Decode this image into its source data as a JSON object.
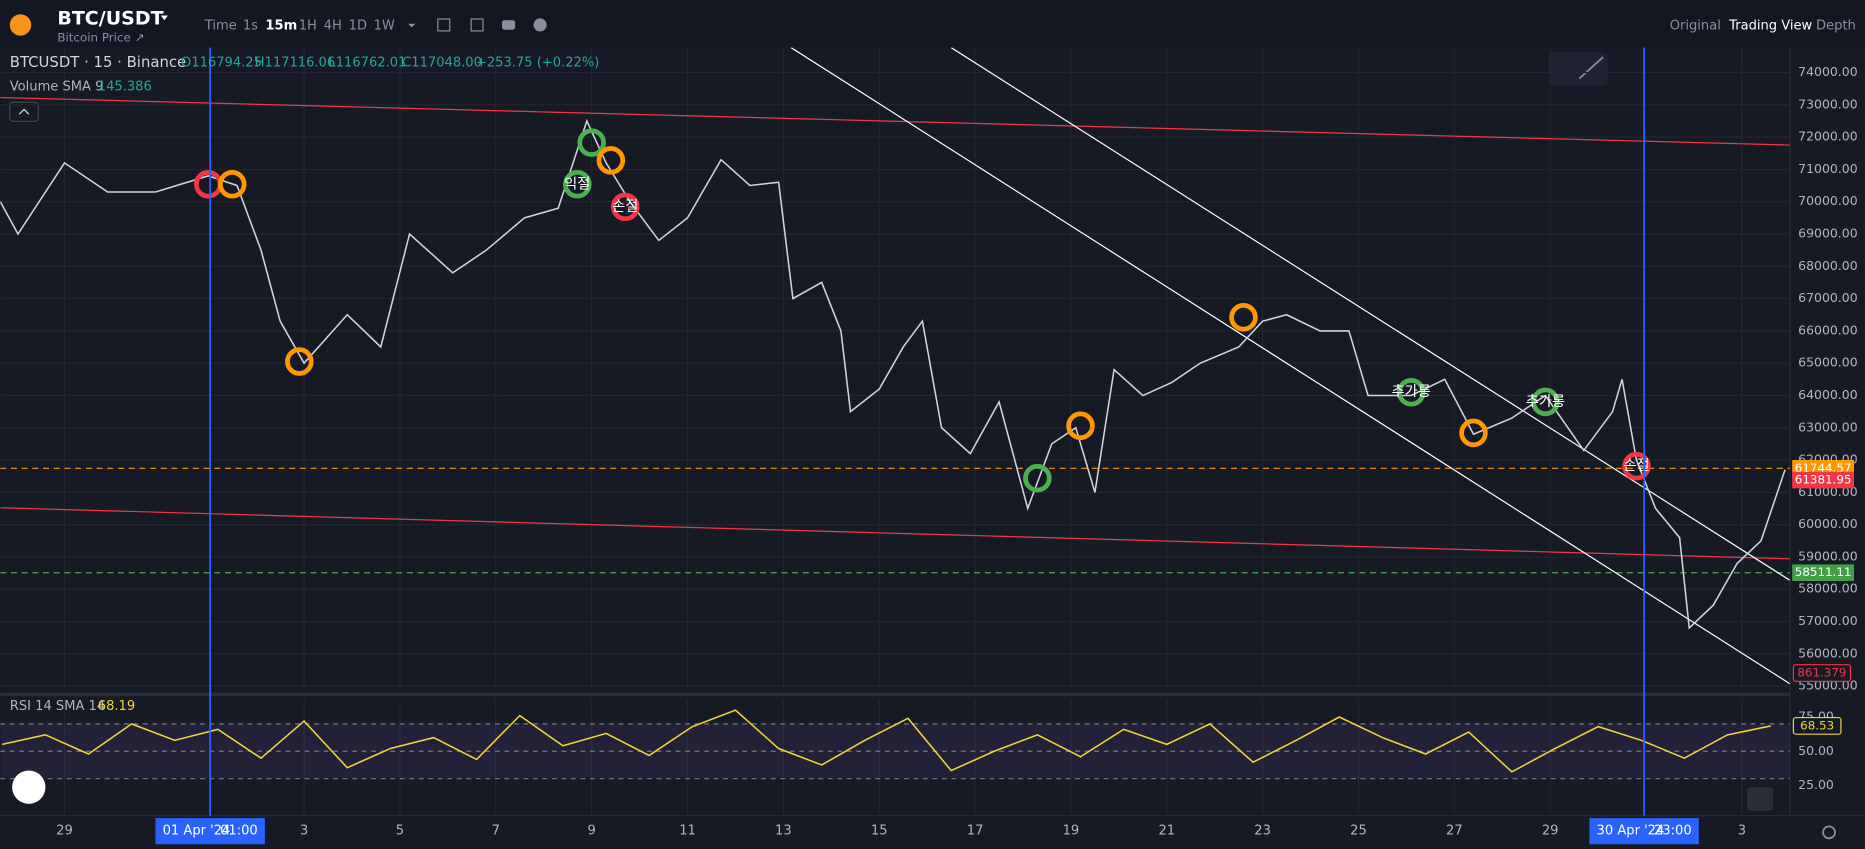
{
  "header": {
    "symbol": "BTC/USDT",
    "subtitle": "Bitcoin Price ↗",
    "timeframes": [
      "Time",
      "1s",
      "15m",
      "1H",
      "4H",
      "1D",
      "1W"
    ],
    "active_timeframe": 2,
    "views": [
      "Original",
      "Trading View",
      "Depth"
    ],
    "active_view": 1
  },
  "legend": {
    "instrument": "BTCUSDT · 15 · Binance",
    "ohlc": [
      "O116794.25",
      "H117116.06",
      "L116762.01",
      "C117048.00",
      "+253.75 (+0.22%)"
    ],
    "volume_label": "Volume SMA 9",
    "volume_value": "145.386",
    "volume_badge": "861.379"
  },
  "chart_data": [
    {
      "type": "line",
      "color": "#d1d4dc",
      "x": [
        -1.34,
        -0.97,
        0,
        0.9,
        1.9,
        3.0,
        3.6,
        4.1,
        4.5,
        5.0,
        5.9,
        6.6,
        7.2,
        8.1,
        8.8,
        9.6,
        10.3,
        10.9,
        11.3,
        11.8,
        12.4,
        13.0,
        13.7,
        14.3,
        14.9,
        15.2,
        15.8,
        16.2,
        16.4,
        17.0,
        17.5,
        17.9,
        18.3,
        18.9,
        19.5,
        20.1,
        20.6,
        21.1,
        21.5,
        21.9,
        22.5,
        23.1,
        23.7,
        24.5,
        25.0,
        25.5,
        26.2,
        26.8,
        27.2,
        28.1,
        28.8,
        29.4,
        30.2,
        30.9,
        31.7,
        32.3,
        32.5,
        32.8,
        33.2,
        33.7,
        33.9,
        34.4,
        34.9,
        35.4,
        35.9
      ],
      "values": [
        70000,
        69000,
        71200,
        70300,
        70300,
        70800,
        70500,
        68500,
        66300,
        65000,
        66500,
        65500,
        69000,
        67800,
        68500,
        69500,
        69800,
        72500,
        71200,
        70000,
        68800,
        69500,
        71300,
        70500,
        70600,
        67000,
        67500,
        66000,
        63500,
        64200,
        65500,
        66300,
        63000,
        62200,
        63800,
        60500,
        62500,
        63000,
        61000,
        64800,
        64000,
        64400,
        65000,
        65500,
        66300,
        66500,
        66000,
        66000,
        64000,
        64000,
        64500,
        62800,
        63300,
        64000,
        62300,
        63500,
        64500,
        62000,
        60500,
        59600,
        56800,
        57500,
        58800,
        59500,
        61700
      ],
      "xlim": [
        -1.34,
        36.0
      ],
      "ylim": [
        54890,
        74773
      ],
      "yticks": [
        {
          "value": 55000,
          "label": "55000.00"
        },
        {
          "value": 56000,
          "label": "56000.00"
        },
        {
          "value": 57000,
          "label": "57000.00"
        },
        {
          "value": 58000,
          "label": "58000.00"
        },
        {
          "value": 59000,
          "label": "59000.00"
        },
        {
          "value": 60000,
          "label": "60000.00"
        },
        {
          "value": 61000,
          "label": "61000.00"
        },
        {
          "value": 62000,
          "label": "62000.00"
        },
        {
          "value": 63000,
          "label": "63000.00"
        },
        {
          "value": 64000,
          "label": "64000.00"
        },
        {
          "value": 65000,
          "label": "65000.00"
        },
        {
          "value": 66000,
          "label": "66000.00"
        },
        {
          "value": 67000,
          "label": "67000.00"
        },
        {
          "value": 68000,
          "label": "68000.00"
        },
        {
          "value": 69000,
          "label": "69000.00"
        },
        {
          "value": 70000,
          "label": "70000.00"
        },
        {
          "value": 71000,
          "label": "71000.00"
        },
        {
          "value": 72000,
          "label": "72000.00"
        },
        {
          "value": 73000,
          "label": "73000.00"
        },
        {
          "value": 74000,
          "label": "74000.00"
        }
      ],
      "xticks": [
        {
          "value": 0,
          "label": "29"
        },
        {
          "value": 5,
          "label": "3"
        },
        {
          "value": 7,
          "label": "5"
        },
        {
          "value": 9,
          "label": "7"
        },
        {
          "value": 11,
          "label": "9"
        },
        {
          "value": 13,
          "label": "11"
        },
        {
          "value": 15,
          "label": "13"
        },
        {
          "value": 17,
          "label": "15"
        },
        {
          "value": 19,
          "label": "17"
        },
        {
          "value": 21,
          "label": "19"
        },
        {
          "value": 23,
          "label": "21"
        },
        {
          "value": 25,
          "label": "23"
        },
        {
          "value": 27,
          "label": "25"
        },
        {
          "value": 29,
          "label": "27"
        },
        {
          "value": 31,
          "label": "29"
        },
        {
          "value": 35,
          "label": "3"
        }
      ],
      "grid": true,
      "trendlines": [
        {
          "color": "#f23645",
          "x": [
            -1.34,
            36.0
          ],
          "values": [
            73227,
            71754
          ]
        },
        {
          "color": "#f23645",
          "x": [
            -1.34,
            36.0
          ],
          "values": [
            60524,
            58941
          ]
        },
        {
          "color": "#ffffff",
          "x": [
            15.16,
            36.0
          ],
          "values": [
            74773,
            55075
          ]
        },
        {
          "color": "#ffffff",
          "x": [
            18.5,
            36.0
          ],
          "values": [
            74773,
            58278
          ]
        }
      ],
      "levels": [
        {
          "value": 61744.57,
          "color": "#ff9800"
        },
        {
          "value": 58511.11,
          "color": "#4caf50"
        }
      ],
      "badges": [
        {
          "value": 61744.57,
          "color": "#ff9800"
        },
        {
          "value": 61381.95,
          "color": "#f23645"
        },
        {
          "value": 58511.11,
          "color": "#43a047"
        }
      ],
      "markers": [
        {
          "x": 3.0,
          "value": 70540,
          "color": "#f23645"
        },
        {
          "x": 3.5,
          "value": 70540,
          "color": "#ff9800"
        },
        {
          "x": 4.9,
          "value": 65050,
          "color": "#ff9800"
        },
        {
          "x": 10.7,
          "value": 70540,
          "color": "#4caf50",
          "label": "익절"
        },
        {
          "x": 11.0,
          "value": 71830,
          "color": "#4caf50"
        },
        {
          "x": 11.4,
          "value": 71280,
          "color": "#ff9800"
        },
        {
          "x": 11.7,
          "value": 69840,
          "color": "#f23645",
          "label": "손절"
        },
        {
          "x": 24.6,
          "value": 66420,
          "color": "#ff9800"
        },
        {
          "x": 20.3,
          "value": 61440,
          "color": "#4caf50"
        },
        {
          "x": 21.2,
          "value": 63060,
          "color": "#ff9800"
        },
        {
          "x": 28.1,
          "value": 64100,
          "color": "#4caf50",
          "label": "추가롱"
        },
        {
          "x": 30.9,
          "value": 63800,
          "color": "#4caf50",
          "label": "추가롱"
        },
        {
          "x": 29.4,
          "value": 62840,
          "color": "#ff9800"
        },
        {
          "x": 32.8,
          "value": 61810,
          "color": "#f23645",
          "label": "손절"
        }
      ],
      "crosshairs": [
        {
          "x": 3.04,
          "date": "01 Apr '24",
          "time": "01:00"
        },
        {
          "x": 32.96,
          "date": "30 Apr '24",
          "time": "23:00"
        }
      ]
    },
    {
      "type": "line",
      "title": "RSI 14 SMA 14",
      "last": "68.19",
      "badge": 68.53,
      "color": "#f0d43a",
      "x": [
        -1.3,
        -0.4,
        0.5,
        1.4,
        2.3,
        3.2,
        4.1,
        5,
        5.9,
        6.8,
        7.7,
        8.6,
        9.5,
        10.4,
        11.3,
        12.2,
        13.1,
        14,
        14.9,
        15.8,
        16.7,
        17.6,
        18.5,
        19.4,
        20.3,
        21.2,
        22.1,
        23,
        23.9,
        24.8,
        25.7,
        26.6,
        27.5,
        28.4,
        29.3,
        30.2,
        31.1,
        32,
        32.9,
        33.8,
        34.7,
        35.6
      ],
      "values": [
        55,
        62,
        48,
        70,
        58,
        66,
        45,
        72,
        38,
        52,
        60,
        44,
        76,
        54,
        63,
        47,
        68,
        80,
        52,
        40,
        58,
        74,
        36,
        50,
        62,
        46,
        66,
        55,
        70,
        42,
        58,
        75,
        60,
        48,
        64,
        35,
        52,
        68,
        58,
        45,
        62,
        68.5
      ],
      "xlim": [
        -1.34,
        36.0
      ],
      "ylim": [
        3,
        88
      ],
      "yticks": [
        {
          "value": 25,
          "label": "25.00"
        },
        {
          "value": 50,
          "label": "50.00"
        },
        {
          "value": 75,
          "label": "75.00"
        }
      ],
      "bands": [
        30,
        50,
        70
      ]
    }
  ]
}
